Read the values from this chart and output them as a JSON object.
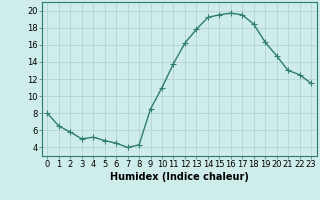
{
  "x": [
    0,
    1,
    2,
    3,
    4,
    5,
    6,
    7,
    8,
    9,
    10,
    11,
    12,
    13,
    14,
    15,
    16,
    17,
    18,
    19,
    20,
    21,
    22,
    23
  ],
  "y": [
    8,
    6.5,
    5.8,
    5.0,
    5.2,
    4.8,
    4.5,
    4.0,
    4.3,
    8.5,
    11.0,
    13.8,
    16.2,
    17.8,
    19.2,
    19.5,
    19.7,
    19.5,
    18.4,
    16.3,
    14.7,
    13.0,
    12.5,
    11.5
  ],
  "line_color": "#2e7d6e",
  "marker": "+",
  "marker_size": 4,
  "bg_color": "#ceecea",
  "grid_color": "#b0cece",
  "xlabel": "Humidex (Indice chaleur)",
  "xlim": [
    -0.5,
    23.5
  ],
  "ylim": [
    3,
    21
  ],
  "yticks": [
    4,
    6,
    8,
    10,
    12,
    14,
    16,
    18,
    20
  ],
  "xticks": [
    0,
    1,
    2,
    3,
    4,
    5,
    6,
    7,
    8,
    9,
    10,
    11,
    12,
    13,
    14,
    15,
    16,
    17,
    18,
    19,
    20,
    21,
    22,
    23
  ],
  "tick_fontsize": 6,
  "xlabel_fontsize": 7,
  "linewidth": 1.0
}
